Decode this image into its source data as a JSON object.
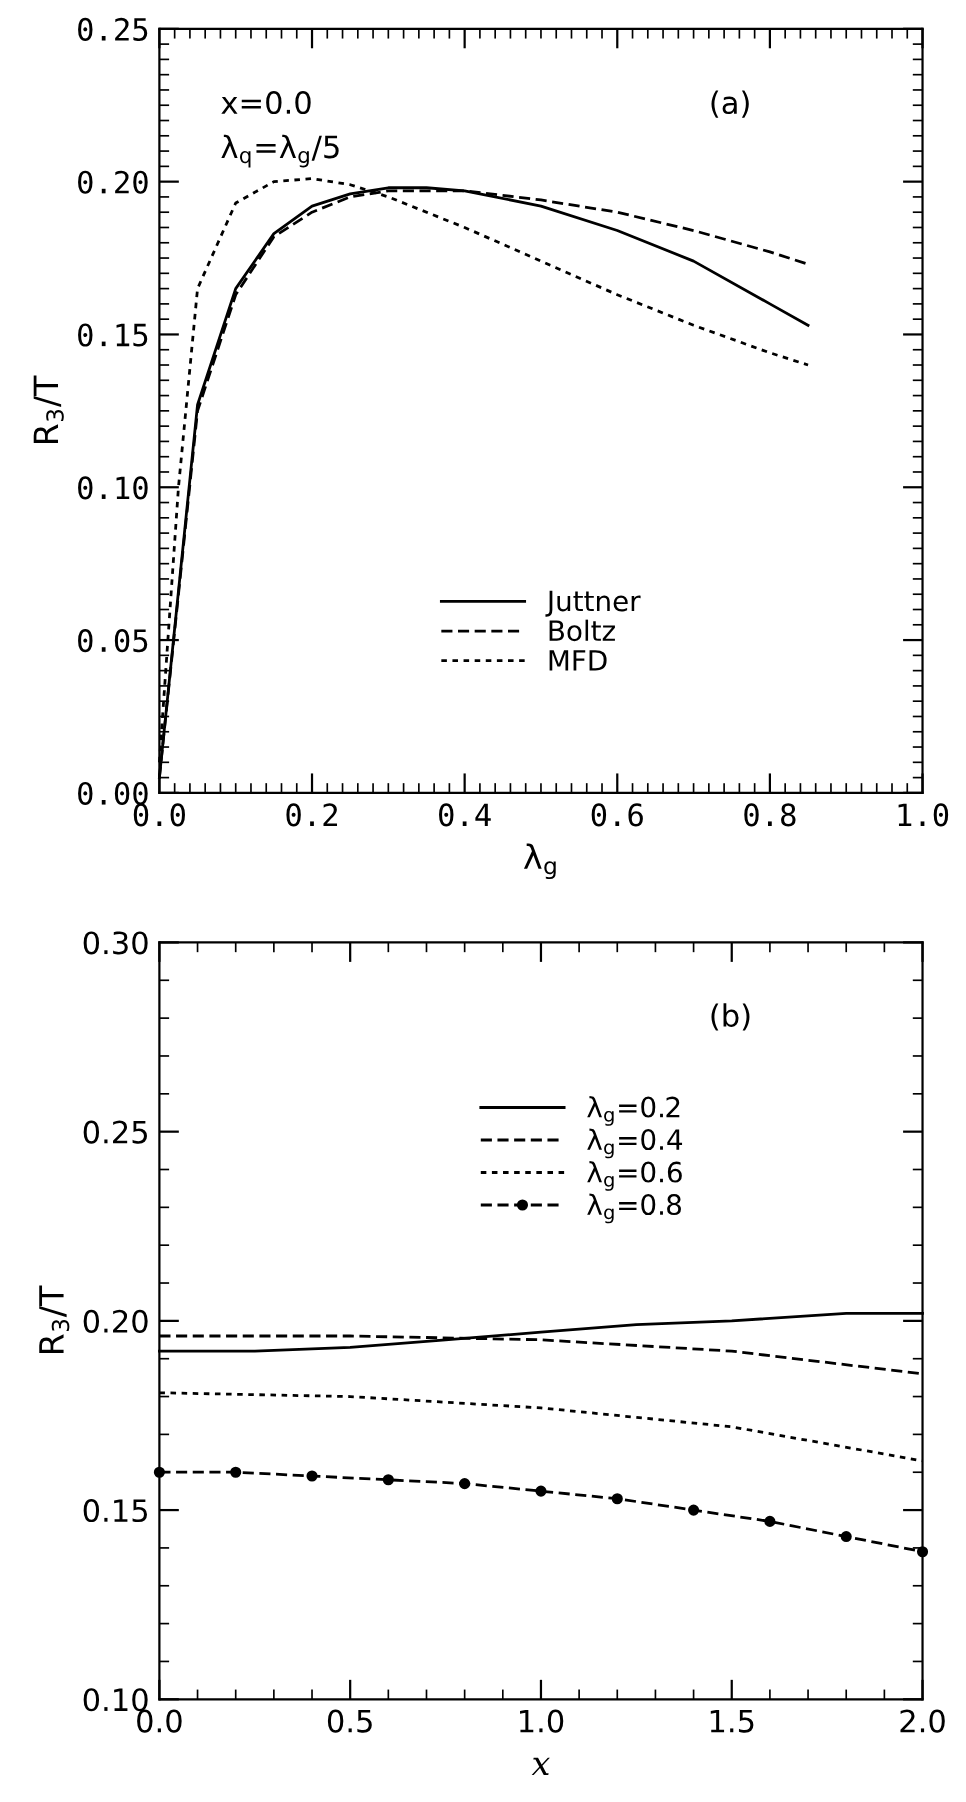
{
  "chart_data": [
    {
      "type": "line",
      "xlabel": "λ$_{g}$",
      "ylabel": "R$_{3}$/T",
      "xlim": [
        0,
        1.0
      ],
      "ylim": [
        0,
        0.25
      ],
      "xticks": [
        {
          "value": 0,
          "label": "0.0"
        },
        0.2,
        0.4,
        0.6,
        0.8,
        {
          "value": 1,
          "label": "1.0"
        }
      ],
      "yticks": [
        {
          "value": 0,
          "label": "0.00"
        },
        0.05,
        {
          "value": 0.1,
          "label": "0.10"
        },
        0.15,
        {
          "value": 0.2,
          "label": "0.20"
        },
        0.25
      ],
      "annotations": [
        "x=0.0",
        "λ$_{q}$=λ$_{g}$/5",
        "(a)"
      ],
      "legend": "bottom",
      "grid": false,
      "series": [
        {
          "name": "Juttner",
          "line_style": "solid",
          "color": "#000000",
          "x": [
            0,
            0.05,
            0.1,
            0.15,
            0.2,
            0.25,
            0.3,
            0.35,
            0.4,
            0.5,
            0.6,
            0.7,
            0.8,
            0.85
          ],
          "values": [
            0.005,
            0.127,
            0.165,
            0.183,
            0.192,
            0.196,
            0.198,
            0.198,
            0.197,
            0.192,
            0.184,
            0.174,
            0.16,
            0.153
          ]
        },
        {
          "name": "Boltz",
          "line_style": "dashed",
          "color": "#000000",
          "x": [
            0,
            0.05,
            0.1,
            0.15,
            0.2,
            0.25,
            0.3,
            0.4,
            0.5,
            0.6,
            0.7,
            0.8,
            0.85
          ],
          "values": [
            0.005,
            0.125,
            0.163,
            0.182,
            0.19,
            0.195,
            0.197,
            0.197,
            0.194,
            0.19,
            0.184,
            0.177,
            0.173
          ]
        },
        {
          "name": "MFD",
          "line_style": "dotted",
          "color": "#000000",
          "x": [
            0,
            0.025,
            0.05,
            0.1,
            0.15,
            0.2,
            0.25,
            0.3,
            0.4,
            0.5,
            0.6,
            0.7,
            0.8,
            0.85
          ],
          "values": [
            0.01,
            0.1,
            0.165,
            0.193,
            0.2,
            0.201,
            0.199,
            0.195,
            0.185,
            0.174,
            0.163,
            0.153,
            0.144,
            0.14
          ]
        }
      ]
    },
    {
      "type": "line",
      "xlabel": "x",
      "ylabel": "R$_{3}$/T",
      "xlim": [
        0,
        2.0
      ],
      "ylim": [
        0.1,
        0.3
      ],
      "xticks": [
        {
          "value": 0,
          "label": "0.0"
        },
        0.5,
        {
          "value": 1,
          "label": "1.0"
        },
        1.5,
        {
          "value": 2,
          "label": "2.0"
        }
      ],
      "yticks": [
        {
          "value": 0.1,
          "label": "0.10"
        },
        0.15,
        {
          "value": 0.2,
          "label": "0.20"
        },
        0.25,
        {
          "value": 0.3,
          "label": "0.30"
        }
      ],
      "annotations": [
        "(b)"
      ],
      "legend": "top right",
      "grid": false,
      "series": [
        {
          "name": "λ$_{g}$=0.2",
          "line_style": "solid",
          "color": "#000000",
          "x": [
            0,
            0.25,
            0.5,
            0.75,
            1.0,
            1.25,
            1.5,
            1.8,
            2.0
          ],
          "values": [
            0.192,
            0.192,
            0.193,
            0.195,
            0.197,
            0.199,
            0.2,
            0.202,
            0.202
          ]
        },
        {
          "name": "λ$_{g}$=0.4",
          "line_style": "dashed",
          "color": "#000000",
          "x": [
            0,
            0.5,
            1.0,
            1.5,
            2.0
          ],
          "values": [
            0.196,
            0.196,
            0.195,
            0.192,
            0.186
          ]
        },
        {
          "name": "λ$_{g}$=0.6",
          "line_style": "dotted",
          "color": "#000000",
          "x": [
            0,
            0.5,
            1.0,
            1.5,
            2.0
          ],
          "values": [
            0.181,
            0.18,
            0.177,
            0.172,
            0.163
          ]
        },
        {
          "name": "λ$_{g}$=0.8",
          "line_style": "dashed",
          "marker": "circle",
          "color": "#000000",
          "x": [
            0,
            0.2,
            0.4,
            0.6,
            0.8,
            1.0,
            1.2,
            1.4,
            1.6,
            1.8,
            2.0
          ],
          "values": [
            0.16,
            0.16,
            0.159,
            0.158,
            0.157,
            0.155,
            0.153,
            0.15,
            0.147,
            0.143,
            0.139
          ]
        }
      ]
    }
  ]
}
